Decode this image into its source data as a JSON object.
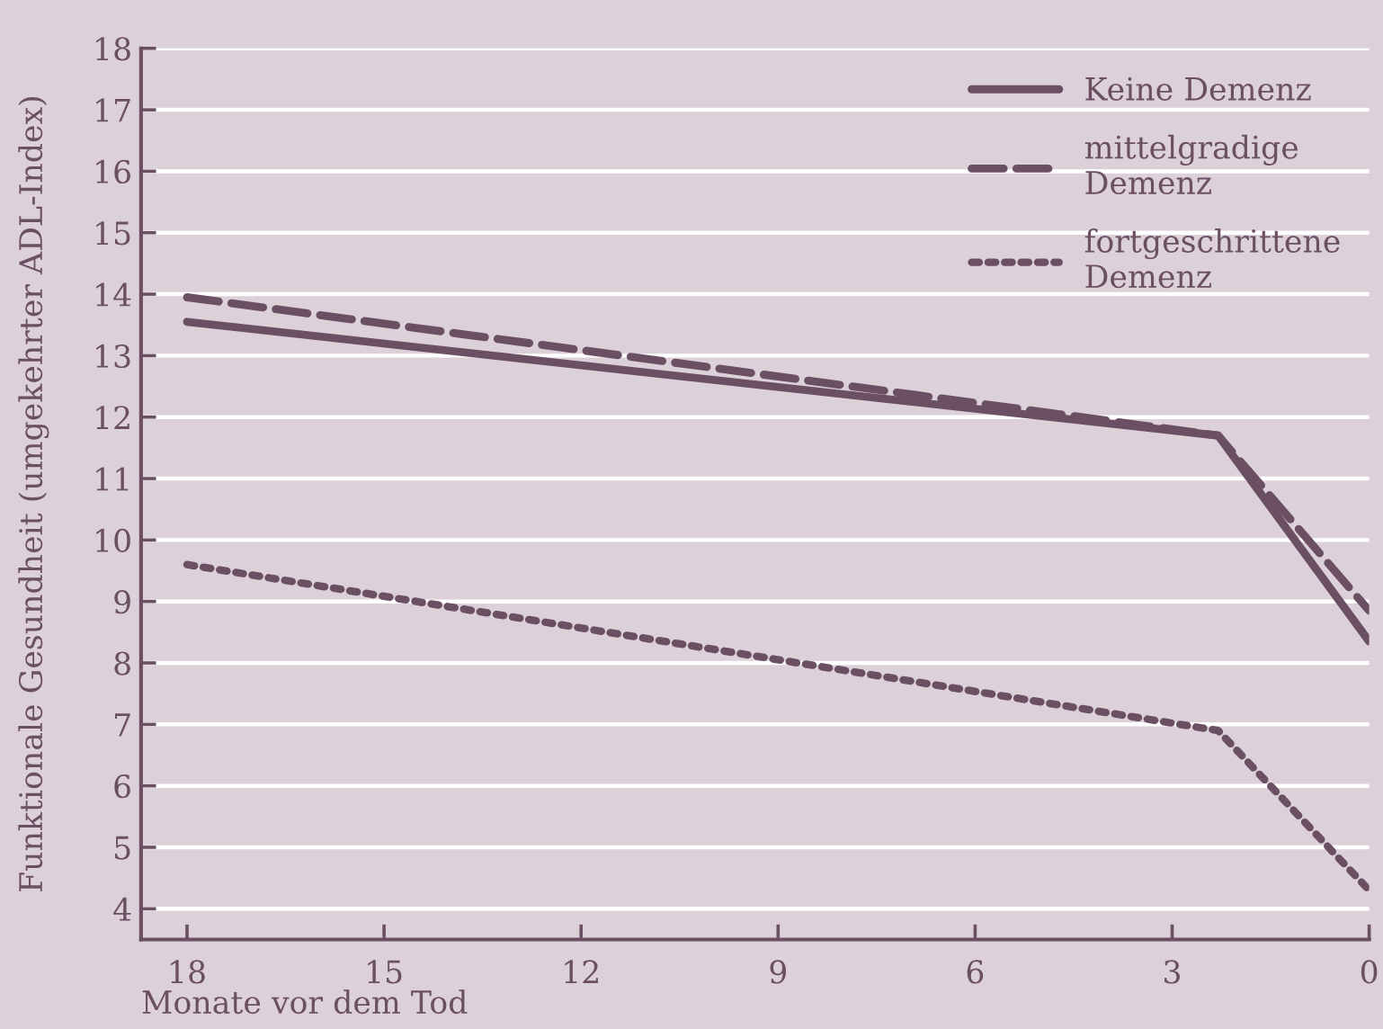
{
  "chart_data": {
    "type": "line",
    "xlabel": "Monate vor dem Tod",
    "ylabel": "Funktionale Gesundheit (umgekehrter ADL-Index)",
    "x": [
      18,
      2.3,
      0
    ],
    "series": [
      {
        "name": "Keine Demenz",
        "color": "#6b4f63",
        "line_style": "solid",
        "values": [
          13.55,
          11.7,
          8.35
        ]
      },
      {
        "name": "mittelgradige\nDemenz",
        "color": "#6b4f63",
        "line_style": "dashed",
        "values": [
          13.95,
          11.7,
          8.85
        ]
      },
      {
        "name": "fortgeschrittene\nDemenz",
        "color": "#6b4f63",
        "line_style": "dotted",
        "values": [
          9.6,
          6.9,
          4.3
        ]
      }
    ],
    "xlim": [
      18.7,
      0
    ],
    "xticks": [
      18,
      15,
      12,
      9,
      6,
      3,
      0
    ],
    "ylim": [
      3.5,
      18
    ],
    "yticks": [
      4,
      5,
      6,
      7,
      8,
      9,
      10,
      11,
      12,
      13,
      14,
      15,
      16,
      17,
      18
    ],
    "grid": "y",
    "legend": "top right"
  }
}
